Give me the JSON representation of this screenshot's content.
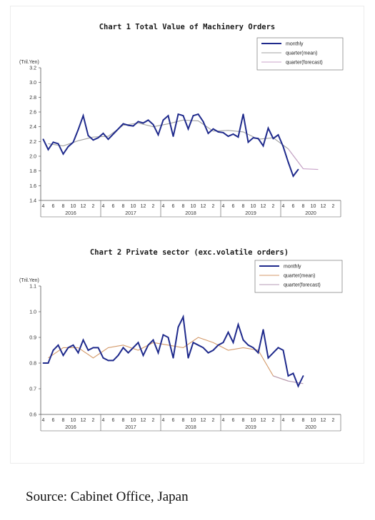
{
  "chart_data": [
    {
      "type": "line",
      "title": "Chart 1 Total Value of Machinery Orders",
      "ylabel": "(Tril.Yen)",
      "ylim": [
        1.4,
        3.2
      ],
      "yticks": [
        "1.4",
        "1.6",
        "1.8",
        "2.0",
        "2.2",
        "2.4",
        "2.6",
        "2.8",
        "3.0",
        "3.2"
      ],
      "x_month_labels": [
        "4",
        "6",
        "8",
        "10",
        "12",
        "2",
        "4",
        "6",
        "8",
        "10",
        "12",
        "2",
        "4",
        "6",
        "8",
        "10",
        "12",
        "2",
        "4",
        "6",
        "8",
        "10",
        "12",
        "2",
        "4",
        "6",
        "8",
        "10",
        "12",
        "2"
      ],
      "years": [
        "2016",
        "2017",
        "2018",
        "2019",
        "2020"
      ],
      "legend": [
        "monthly",
        "quarter(mean)",
        "quarter(forecast)"
      ],
      "legend_position": "top-right",
      "colors": {
        "monthly": "#1f2a8c",
        "mean": "#a0a0a0",
        "forecast": "#c9a3c9"
      },
      "months_start": "2016-04",
      "monthly": [
        2.23,
        2.09,
        2.19,
        2.17,
        2.03,
        2.13,
        2.19,
        2.36,
        2.55,
        2.28,
        2.22,
        2.25,
        2.31,
        2.23,
        2.3,
        2.37,
        2.44,
        2.42,
        2.41,
        2.47,
        2.45,
        2.49,
        2.43,
        2.29,
        2.49,
        2.55,
        2.27,
        2.57,
        2.55,
        2.37,
        2.55,
        2.57,
        2.47,
        2.31,
        2.37,
        2.33,
        2.32,
        2.27,
        2.3,
        2.26,
        2.57,
        2.19,
        2.25,
        2.24,
        2.14,
        2.38,
        2.24,
        2.29,
        2.13,
        1.92,
        1.73,
        1.82
      ],
      "quarter_mean": [
        2.17,
        2.14,
        2.21,
        2.26,
        2.27,
        2.42,
        2.45,
        2.4,
        2.44,
        2.49,
        2.48,
        2.34,
        2.35,
        2.33,
        2.23,
        2.25,
        2.1,
        1.83
      ],
      "quarter_forecast": [
        2.1,
        1.83,
        1.82
      ]
    },
    {
      "type": "line",
      "title": "Chart 2 Private sector (exc.volatile orders)",
      "ylabel": "(Tril.Yen)",
      "ylim": [
        0.6,
        1.1
      ],
      "yticks": [
        "0.6",
        "0.7",
        "0.8",
        "0.9",
        "1.0",
        "1.1"
      ],
      "x_month_labels": [
        "4",
        "6",
        "8",
        "10",
        "12",
        "2",
        "4",
        "6",
        "8",
        "10",
        "12",
        "2",
        "4",
        "6",
        "8",
        "10",
        "12",
        "2",
        "4",
        "6",
        "8",
        "10",
        "12",
        "2",
        "4",
        "6",
        "8",
        "10",
        "12",
        "2"
      ],
      "years": [
        "2016",
        "2017",
        "2018",
        "2019",
        "2020"
      ],
      "legend": [
        "monthly",
        "quarter(mean)",
        "quarter(forecast)"
      ],
      "legend_position": "top-right",
      "colors": {
        "monthly": "#1f2a8c",
        "mean": "#d49a6a",
        "forecast": "#b59ab5"
      },
      "months_start": "2016-04",
      "monthly": [
        0.8,
        0.8,
        0.85,
        0.87,
        0.83,
        0.86,
        0.87,
        0.84,
        0.89,
        0.85,
        0.86,
        0.86,
        0.82,
        0.81,
        0.81,
        0.83,
        0.86,
        0.84,
        0.86,
        0.88,
        0.83,
        0.87,
        0.89,
        0.84,
        0.91,
        0.9,
        0.82,
        0.94,
        0.98,
        0.82,
        0.88,
        0.87,
        0.86,
        0.84,
        0.85,
        0.87,
        0.88,
        0.92,
        0.88,
        0.95,
        0.89,
        0.87,
        0.86,
        0.84,
        0.93,
        0.82,
        0.84,
        0.86,
        0.85,
        0.75,
        0.76,
        0.71,
        0.75
      ],
      "quarter_mean": [
        0.82,
        0.86,
        0.86,
        0.82,
        0.86,
        0.87,
        0.85,
        0.88,
        0.87,
        0.86,
        0.9,
        0.88,
        0.85,
        0.86,
        0.85,
        0.75,
        0.73
      ],
      "quarter_forecast": [
        0.75,
        0.73,
        0.72
      ]
    }
  ],
  "source_text": "Source: Cabinet Office, Japan"
}
